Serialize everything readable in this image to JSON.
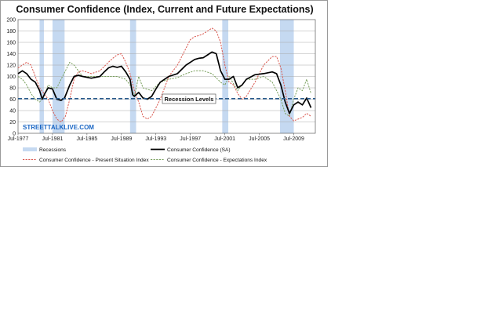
{
  "chart_data": {
    "type": "line",
    "title": "Consumer Confidence (Index, Current and Future Expectations)",
    "xlabel": "",
    "ylabel": "",
    "xlim": [
      1977.5,
      2012.0
    ],
    "ylim": [
      0,
      200
    ],
    "y_ticks": [
      0,
      20,
      40,
      60,
      80,
      100,
      120,
      140,
      160,
      180,
      200
    ],
    "x_tick_labels": [
      "Jul-1977",
      "Jul-1981",
      "Jul-1985",
      "Jul-1989",
      "Jul-1993",
      "Jul-1997",
      "Jul-2001",
      "Jul-2005",
      "Jul-2009"
    ],
    "x_tick_values": [
      1977.5,
      1981.5,
      1985.5,
      1989.5,
      1993.5,
      1997.5,
      2001.5,
      2005.5,
      2009.5
    ],
    "grid": "horizontal",
    "legend_position": "bottom",
    "recessions": [
      {
        "start": 1980.0,
        "end": 1980.5
      },
      {
        "start": 1981.5,
        "end": 1982.9
      },
      {
        "start": 1990.5,
        "end": 1991.2
      },
      {
        "start": 2001.2,
        "end": 2001.9
      },
      {
        "start": 2007.9,
        "end": 2009.5
      }
    ],
    "reference_line": {
      "value": 61,
      "label": "Recession Levels",
      "color": "#2a5b8c"
    },
    "series": [
      {
        "name": "Consumer Confidence (SA)",
        "color": "#000000",
        "style": "solid",
        "x": [
          1977.5,
          1978.0,
          1978.5,
          1979.0,
          1979.5,
          1980.0,
          1980.3,
          1980.6,
          1981.0,
          1981.5,
          1982.0,
          1982.5,
          1982.9,
          1983.5,
          1984.0,
          1984.5,
          1985.0,
          1986.0,
          1987.0,
          1987.5,
          1988.0,
          1988.5,
          1989.0,
          1989.5,
          1990.0,
          1990.5,
          1990.8,
          1991.0,
          1991.5,
          1992.0,
          1992.5,
          1993.0,
          1993.5,
          1994.0,
          1995.0,
          1996.0,
          1997.0,
          1997.5,
          1998.0,
          1998.5,
          1999.0,
          1999.5,
          2000.0,
          2000.5,
          2001.0,
          2001.5,
          2002.0,
          2002.5,
          2003.0,
          2003.5,
          2004.0,
          2005.0,
          2006.0,
          2007.0,
          2007.5,
          2008.0,
          2008.5,
          2009.0,
          2009.5,
          2010.0,
          2010.5,
          2011.0,
          2011.5
        ],
        "values": [
          105,
          110,
          105,
          95,
          90,
          75,
          60,
          70,
          80,
          78,
          60,
          58,
          62,
          85,
          100,
          102,
          100,
          97,
          100,
          108,
          115,
          118,
          116,
          118,
          108,
          95,
          68,
          65,
          72,
          62,
          60,
          65,
          78,
          90,
          100,
          105,
          120,
          125,
          130,
          132,
          133,
          138,
          143,
          140,
          110,
          95,
          95,
          100,
          80,
          85,
          95,
          103,
          105,
          108,
          105,
          85,
          55,
          35,
          50,
          55,
          50,
          62,
          45
        ]
      },
      {
        "name": "Consumer Confidence - Present Situation Index",
        "color": "#d9584f",
        "style": "dashed",
        "x": [
          1977.5,
          1978.0,
          1978.5,
          1979.0,
          1979.5,
          1980.0,
          1980.5,
          1981.0,
          1981.5,
          1982.0,
          1982.5,
          1983.0,
          1983.5,
          1984.0,
          1984.5,
          1985.0,
          1986.0,
          1987.0,
          1988.0,
          1988.5,
          1989.0,
          1989.5,
          1990.0,
          1990.5,
          1991.0,
          1991.5,
          1992.0,
          1992.5,
          1993.0,
          1993.5,
          1994.0,
          1995.0,
          1996.0,
          1997.0,
          1997.5,
          1998.0,
          1998.5,
          1999.0,
          1999.5,
          2000.0,
          2000.5,
          2001.0,
          2001.5,
          2002.0,
          2002.5,
          2003.0,
          2003.5,
          2004.0,
          2005.0,
          2006.0,
          2007.0,
          2007.5,
          2008.0,
          2008.5,
          2009.0,
          2009.5,
          2010.0,
          2010.5,
          2011.0,
          2011.5
        ],
        "values": [
          115,
          120,
          125,
          120,
          100,
          80,
          70,
          60,
          40,
          25,
          20,
          30,
          60,
          95,
          108,
          110,
          105,
          110,
          125,
          132,
          138,
          140,
          125,
          105,
          75,
          55,
          30,
          25,
          30,
          45,
          60,
          100,
          120,
          150,
          165,
          170,
          172,
          175,
          180,
          185,
          180,
          160,
          120,
          90,
          85,
          70,
          60,
          65,
          90,
          120,
          135,
          135,
          115,
          75,
          30,
          22,
          25,
          28,
          35,
          30
        ]
      },
      {
        "name": "Consumer Confidence - Expectations Index",
        "color": "#7aa05e",
        "style": "dashed",
        "x": [
          1977.5,
          1978.0,
          1978.5,
          1979.0,
          1979.5,
          1980.0,
          1980.5,
          1981.0,
          1981.5,
          1982.0,
          1982.5,
          1983.0,
          1983.5,
          1984.0,
          1985.0,
          1986.0,
          1987.0,
          1988.0,
          1989.0,
          1990.0,
          1990.5,
          1991.0,
          1991.5,
          1992.0,
          1993.0,
          1994.0,
          1995.0,
          1996.0,
          1997.0,
          1998.0,
          1999.0,
          2000.0,
          2001.0,
          2001.5,
          2002.0,
          2003.0,
          2004.0,
          2005.0,
          2006.0,
          2007.0,
          2008.0,
          2008.5,
          2009.0,
          2009.5,
          2010.0,
          2010.5,
          2011.0,
          2011.5
        ],
        "values": [
          100,
          95,
          85,
          70,
          60,
          55,
          65,
          85,
          80,
          80,
          95,
          110,
          125,
          120,
          100,
          100,
          100,
          100,
          100,
          95,
          85,
          65,
          100,
          80,
          75,
          90,
          95,
          98,
          105,
          110,
          110,
          105,
          90,
          85,
          100,
          75,
          95,
          95,
          100,
          90,
          60,
          35,
          30,
          60,
          80,
          75,
          95,
          70
        ]
      }
    ]
  },
  "legend": {
    "recessions_label": "Recessions",
    "recessions_color": "#c5d9f1"
  },
  "annotation": {
    "recession_levels": "Recession Levels"
  },
  "watermark": {
    "text": "STREETTALKLIVE.COM"
  }
}
